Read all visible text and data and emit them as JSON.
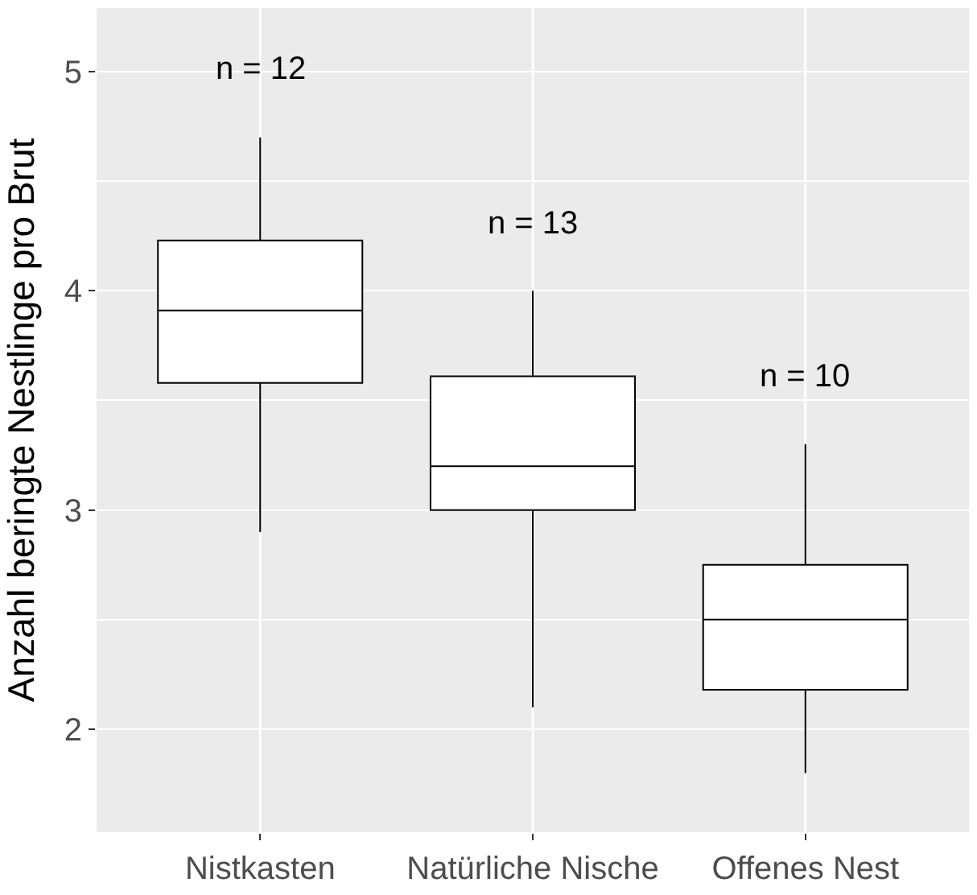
{
  "chart_data": {
    "type": "box",
    "ylabel": "Anzahl beringte Nestlinge pro Brut",
    "categories": [
      "Nistkasten",
      "Natürliche Nische",
      "Offenes Nest"
    ],
    "boxes": [
      {
        "low": 2.9,
        "q1": 3.58,
        "median": 3.91,
        "q3": 4.23,
        "high": 4.7
      },
      {
        "low": 2.1,
        "q1": 3.0,
        "median": 3.2,
        "q3": 3.61,
        "high": 4.0
      },
      {
        "low": 1.8,
        "q1": 2.18,
        "median": 2.5,
        "q3": 2.75,
        "high": 3.3
      }
    ],
    "color": "#000000",
    "ylim": [
      1.53,
      5.29
    ],
    "yticks": [
      2,
      3,
      4,
      5
    ],
    "grid": true,
    "annotations": [
      "n = 12",
      "n = 13",
      "n = 10"
    ]
  }
}
